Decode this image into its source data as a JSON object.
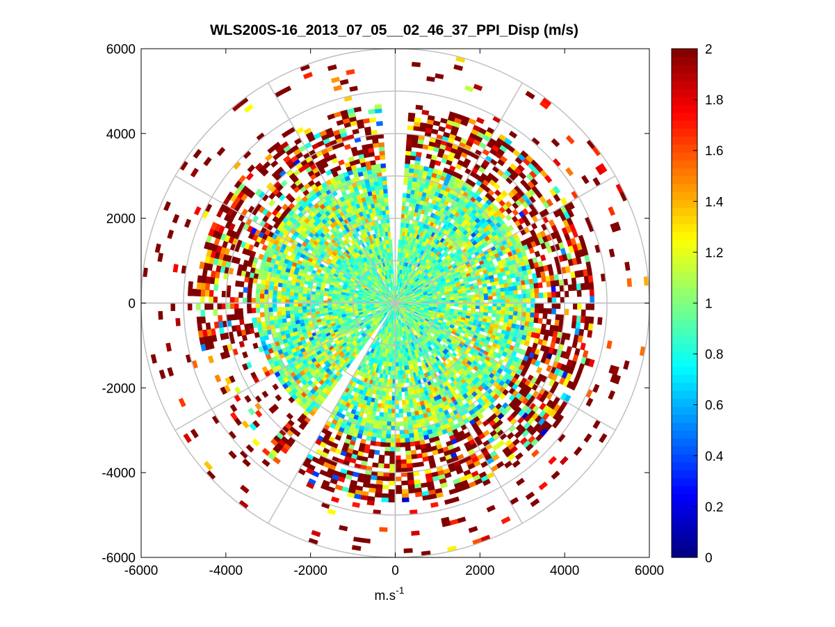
{
  "chart_data": {
    "type": "heatmap",
    "subtype": "polar-ppi-scan",
    "title": "WLS200S-16_2013_07_05__02_46_37_PPI_Disp (m/s)",
    "xlabel": "m.s",
    "xlabel_superscript": "-1",
    "ylabel": "",
    "xlim": [
      -6000,
      6000
    ],
    "ylim": [
      -6000,
      6000
    ],
    "x_ticks": [
      -6000,
      -4000,
      -2000,
      0,
      2000,
      4000,
      6000
    ],
    "y_ticks": [
      6000,
      4000,
      2000,
      0,
      -2000,
      -4000,
      -6000
    ],
    "x_tick_labels": [
      "-6000",
      "-4000",
      "-2000",
      "0",
      "2000",
      "4000",
      "6000"
    ],
    "y_tick_labels": [
      "6000",
      "4000",
      "2000",
      "0",
      "-2000",
      "-4000",
      "-6000"
    ],
    "polar_grid": {
      "range_rings": [
        1000,
        2000,
        3000,
        4000,
        5000,
        6000
      ],
      "spokes_deg": [
        0,
        30,
        60,
        90,
        120,
        150,
        180,
        210,
        240,
        270,
        300,
        330
      ],
      "grid": true
    },
    "colorbar": {
      "colormap": "jet",
      "clim": [
        0,
        2
      ],
      "ticks": [
        0,
        0.2,
        0.4,
        0.6,
        0.8,
        1,
        1.2,
        1.4,
        1.6,
        1.8,
        2
      ],
      "tick_labels": [
        "0",
        "0.2",
        "0.4",
        "0.6",
        "0.8",
        "1",
        "1.2",
        "1.4",
        "1.6",
        "1.8",
        "2"
      ]
    },
    "scan": {
      "range_max_m": 6000,
      "range_gate_m": 100,
      "dense_inner_radius_m": 3300,
      "data_outer_radius_m": 4700,
      "sparse_outer_radius_m": 6000,
      "gap_sectors_deg": [
        [
          355,
          3
        ],
        [
          210,
          216
        ]
      ],
      "inner_mean": 0.95,
      "outer_mean": 1.55,
      "seed": 7
    }
  }
}
